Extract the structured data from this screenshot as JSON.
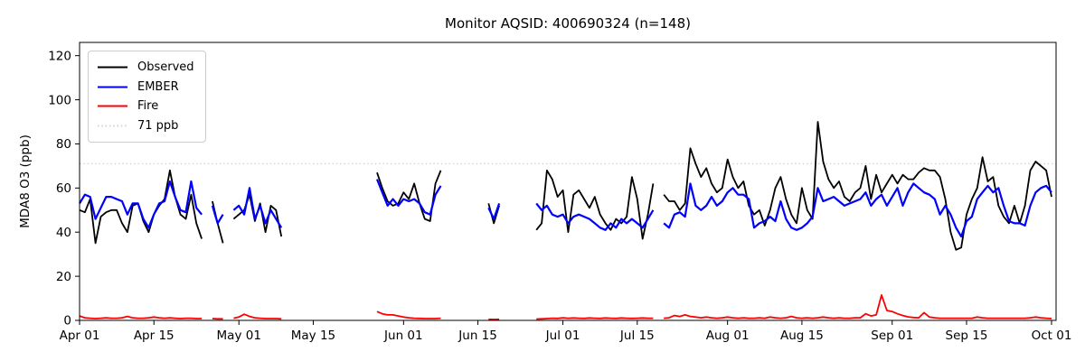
{
  "chart_data": {
    "type": "line",
    "title": "Monitor AQSID: 400690324 (n=148)",
    "xlabel": "",
    "ylabel": "MDA8 O3 (ppb)",
    "ylim": [
      0,
      126
    ],
    "yticks": [
      0,
      20,
      40,
      60,
      80,
      100,
      120
    ],
    "grid": false,
    "legend_position": "upper left",
    "x_days_total": 183,
    "x_start_date": "Apr 01",
    "x_end_date": "Oct 01",
    "xticks": [
      {
        "label": "Apr 01",
        "day": 0
      },
      {
        "label": "Apr 15",
        "day": 14
      },
      {
        "label": "May 01",
        "day": 30
      },
      {
        "label": "May 15",
        "day": 44
      },
      {
        "label": "Jun 01",
        "day": 61
      },
      {
        "label": "Jun 15",
        "day": 75
      },
      {
        "label": "Jul 01",
        "day": 91
      },
      {
        "label": "Jul 15",
        "day": 105
      },
      {
        "label": "Aug 01",
        "day": 122
      },
      {
        "label": "Aug 15",
        "day": 136
      },
      {
        "label": "Sep 01",
        "day": 153
      },
      {
        "label": "Sep 15",
        "day": 167
      },
      {
        "label": "Oct 01",
        "day": 183
      }
    ],
    "threshold": {
      "label": "71 ppb",
      "value": 71,
      "color": "#d3d3d3",
      "style": "dotted"
    },
    "legend": [
      {
        "label": "Observed",
        "color": "#000000",
        "dash": null
      },
      {
        "label": "EMBER",
        "color": "#0000ff",
        "dash": null
      },
      {
        "label": "Fire",
        "color": "#ff0000",
        "dash": null
      },
      {
        "label": "71 ppb",
        "color": "#d3d3d3",
        "dash": "1.5 2.8"
      }
    ],
    "series": [
      {
        "name": "Observed",
        "color": "#000000",
        "width": 1.8,
        "values": [
          50,
          49,
          55,
          35,
          47,
          49,
          50,
          50,
          44,
          40,
          52,
          53,
          45,
          40,
          48,
          52,
          55,
          68,
          56,
          48,
          46,
          57,
          44,
          37,
          null,
          54,
          44,
          35,
          null,
          46,
          48,
          50,
          57,
          45,
          53,
          40,
          52,
          50,
          38,
          null,
          null,
          null,
          null,
          null,
          null,
          null,
          null,
          null,
          null,
          null,
          null,
          null,
          null,
          null,
          null,
          null,
          67,
          60,
          54,
          52,
          53,
          58,
          55,
          62,
          53,
          46,
          45,
          62,
          68,
          null,
          null,
          null,
          null,
          null,
          null,
          null,
          null,
          53,
          44,
          52,
          null,
          null,
          null,
          null,
          null,
          null,
          41,
          44,
          68,
          64,
          56,
          59,
          40,
          57,
          59,
          55,
          51,
          56,
          48,
          44,
          41,
          46,
          44,
          47,
          65,
          55,
          37,
          48,
          62,
          null,
          57,
          54,
          54,
          50,
          53,
          78,
          71,
          65,
          69,
          62,
          58,
          60,
          73,
          65,
          60,
          63,
          52,
          48,
          50,
          43,
          50,
          60,
          65,
          55,
          48,
          44,
          60,
          50,
          46,
          90,
          72,
          64,
          60,
          63,
          56,
          54,
          58,
          60,
          70,
          55,
          66,
          58,
          62,
          66,
          62,
          66,
          64,
          64,
          67,
          69,
          68,
          68,
          65,
          55,
          40,
          32,
          33,
          48,
          55,
          60,
          74,
          63,
          65,
          52,
          47,
          44,
          52,
          44,
          52,
          68,
          72,
          70,
          68,
          56
        ]
      },
      {
        "name": "EMBER",
        "color": "#0000ff",
        "width": 2.2,
        "values": [
          53,
          57,
          56,
          46,
          51,
          56,
          56,
          55,
          54,
          48,
          53,
          53,
          46,
          42,
          48,
          53,
          54,
          63,
          56,
          50,
          49,
          63,
          51,
          48,
          null,
          52,
          44,
          48,
          null,
          50,
          52,
          48,
          60,
          46,
          52,
          44,
          50,
          46,
          42,
          null,
          null,
          null,
          null,
          null,
          null,
          null,
          null,
          null,
          null,
          null,
          null,
          null,
          null,
          null,
          null,
          null,
          64,
          58,
          52,
          55,
          52,
          55,
          54,
          55,
          53,
          49,
          48,
          57,
          61,
          null,
          null,
          null,
          null,
          null,
          null,
          null,
          null,
          51,
          46,
          53,
          null,
          null,
          null,
          null,
          null,
          null,
          53,
          50,
          52,
          48,
          47,
          48,
          44,
          47,
          48,
          47,
          46,
          44,
          42,
          41,
          44,
          42,
          46,
          44,
          46,
          44,
          42,
          46,
          50,
          null,
          44,
          42,
          48,
          49,
          47,
          62,
          52,
          50,
          52,
          56,
          52,
          54,
          58,
          60,
          57,
          57,
          55,
          42,
          44,
          45,
          47,
          45,
          54,
          46,
          42,
          41,
          42,
          44,
          47,
          60,
          54,
          55,
          56,
          54,
          52,
          53,
          54,
          55,
          58,
          52,
          55,
          57,
          52,
          56,
          60,
          52,
          58,
          62,
          60,
          58,
          57,
          55,
          48,
          52,
          48,
          42,
          38,
          45,
          47,
          55,
          58,
          61,
          58,
          60,
          52,
          45,
          44,
          44,
          43,
          52,
          58,
          60,
          61,
          58
        ]
      },
      {
        "name": "Fire",
        "color": "#ff0000",
        "width": 1.8,
        "values": [
          2.0,
          1.2,
          1.0,
          0.8,
          1.0,
          1.2,
          1.0,
          1.0,
          1.2,
          1.8,
          1.2,
          1.0,
          1.0,
          1.2,
          1.5,
          1.2,
          1.0,
          1.2,
          1.0,
          0.8,
          1.0,
          1.0,
          0.8,
          0.8,
          null,
          0.8,
          0.7,
          0.7,
          null,
          1.0,
          1.5,
          2.8,
          1.8,
          1.2,
          1.0,
          0.8,
          0.8,
          0.8,
          0.7,
          null,
          null,
          null,
          null,
          null,
          null,
          null,
          null,
          null,
          null,
          null,
          null,
          null,
          null,
          null,
          null,
          null,
          4.0,
          3.0,
          2.5,
          2.5,
          2.0,
          1.5,
          1.2,
          1.0,
          0.9,
          0.8,
          0.8,
          0.8,
          1.0,
          null,
          null,
          null,
          null,
          null,
          null,
          null,
          null,
          0.5,
          0.4,
          0.5,
          null,
          null,
          null,
          null,
          null,
          null,
          0.6,
          0.7,
          0.8,
          1.0,
          0.9,
          1.2,
          1.0,
          1.1,
          1.0,
          0.9,
          1.1,
          1.0,
          0.9,
          1.1,
          1.0,
          0.9,
          1.1,
          1.0,
          0.9,
          1.0,
          1.1,
          1.0,
          1.0,
          null,
          1.0,
          1.2,
          2.2,
          1.8,
          2.5,
          1.8,
          1.5,
          1.2,
          1.5,
          1.2,
          1.0,
          1.2,
          1.5,
          1.2,
          1.0,
          1.2,
          1.0,
          1.0,
          1.2,
          1.0,
          1.5,
          1.2,
          1.0,
          1.2,
          1.8,
          1.2,
          1.0,
          1.2,
          1.0,
          1.2,
          1.5,
          1.2,
          1.0,
          1.2,
          1.0,
          1.0,
          1.2,
          1.2,
          3.0,
          2.0,
          2.5,
          11.5,
          4.5,
          4.0,
          3.0,
          2.2,
          1.6,
          1.3,
          1.2,
          3.5,
          1.5,
          1.2,
          1.0,
          1.0,
          1.0,
          1.0,
          1.0,
          1.0,
          1.0,
          1.5,
          1.2,
          1.0,
          1.0,
          1.0,
          1.0,
          1.0,
          1.0,
          1.0,
          1.0,
          1.2,
          1.5,
          1.2,
          1.0,
          0.8
        ]
      }
    ]
  }
}
